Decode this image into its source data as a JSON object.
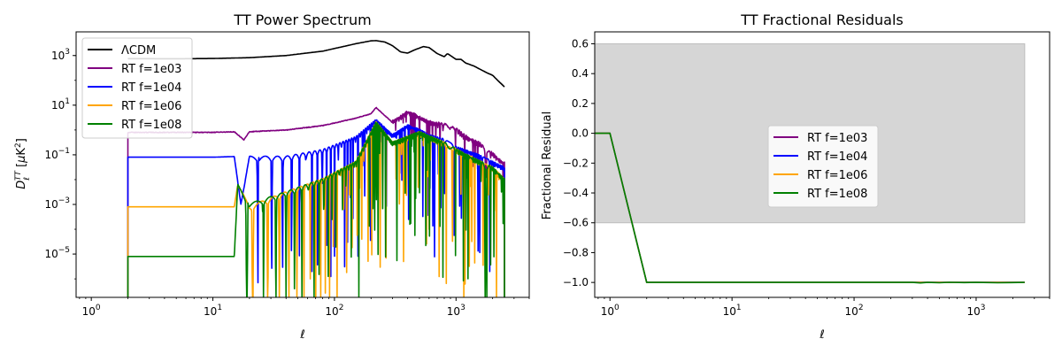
{
  "chart_data": [
    {
      "type": "line",
      "title": "TT Power Spectrum",
      "xlabel": "ℓ",
      "ylabel": "D_ℓ^TT [μK²]",
      "xscale": "log",
      "yscale": "log",
      "xlim": [
        0.75,
        4000
      ],
      "ylim": [
        1.8e-07,
        9000
      ],
      "xticks": [
        {
          "value": 1,
          "mantissa": "10",
          "exp": "0"
        },
        {
          "value": 10,
          "mantissa": "10",
          "exp": "1"
        },
        {
          "value": 100,
          "mantissa": "10",
          "exp": "2"
        },
        {
          "value": 1000,
          "mantissa": "10",
          "exp": "3"
        }
      ],
      "yticks": [
        {
          "value": 1e-05,
          "mantissa": "10",
          "exp": "−5"
        },
        {
          "value": 0.001,
          "mantissa": "10",
          "exp": "−3"
        },
        {
          "value": 0.1,
          "mantissa": "10",
          "exp": "−1"
        },
        {
          "value": 10,
          "mantissa": "10",
          "exp": "1"
        },
        {
          "value": 1000,
          "mantissa": "10",
          "exp": "3"
        }
      ],
      "legend": "upper-left",
      "series": [
        {
          "name": "ΛCDM",
          "color": "#000000",
          "x": [
            2,
            5,
            10,
            20,
            40,
            80,
            150,
            200,
            220,
            260,
            300,
            350,
            400,
            450,
            500,
            540,
            600,
            700,
            800,
            850,
            900,
            1000,
            1100,
            1200,
            1400,
            1600,
            1800,
            2000,
            2200,
            2500
          ],
          "y": [
            750,
            740,
            760,
            820,
            1000,
            1500,
            3000,
            3900,
            4000,
            3500,
            2500,
            1400,
            1250,
            1650,
            2000,
            2300,
            2100,
            1200,
            900,
            1200,
            1000,
            700,
            700,
            500,
            380,
            270,
            200,
            160,
            100,
            55
          ]
        },
        {
          "name": "RT f=1e03",
          "color": "#800080",
          "x": [
            2,
            5,
            10,
            15,
            18,
            20,
            40,
            80,
            150,
            200,
            220,
            300,
            400,
            500,
            600,
            800,
            1000,
            1200,
            1500,
            2000,
            2500
          ],
          "y": [
            0.8,
            0.8,
            0.8,
            0.85,
            0.4,
            0.85,
            1.0,
            1.5,
            3.0,
            4.5,
            8.0,
            2.0,
            5.0,
            3.0,
            2.0,
            1.5,
            1.0,
            0.5,
            0.3,
            0.1,
            0.04
          ]
        },
        {
          "name": "RT f=1e04",
          "color": "#0000ff",
          "x": [
            2,
            5,
            10,
            15,
            17,
            20,
            40,
            80,
            150,
            220,
            300,
            400,
            500,
            600,
            800,
            1000,
            1500,
            2000,
            2500
          ],
          "y": [
            0.08,
            0.08,
            0.08,
            0.085,
            0.001,
            0.08,
            0.08,
            0.15,
            0.5,
            2.5,
            0.6,
            1.5,
            1.0,
            0.6,
            0.4,
            0.2,
            0.1,
            0.05,
            0.03
          ]
        },
        {
          "name": "RT f=1e06",
          "color": "#ffa500",
          "x": [
            2,
            5,
            10,
            15,
            16,
            20,
            40,
            80,
            150,
            220,
            300,
            500,
            800,
            1200,
            2000,
            2500
          ],
          "y": [
            0.0008,
            0.0008,
            0.0008,
            0.0008,
            0.006,
            0.0008,
            0.003,
            0.01,
            0.05,
            2.0,
            0.3,
            0.8,
            0.3,
            0.1,
            0.03,
            0.01
          ]
        },
        {
          "name": "RT f=1e08",
          "color": "#008000",
          "x": [
            2,
            5,
            10,
            15,
            16,
            20,
            40,
            80,
            150,
            220,
            300,
            500,
            800,
            1200,
            2000,
            2500
          ],
          "y": [
            8e-06,
            8e-06,
            8e-06,
            8e-06,
            0.006,
            0.001,
            0.003,
            0.01,
            0.05,
            2.0,
            0.3,
            0.8,
            0.3,
            0.1,
            0.03,
            0.01
          ]
        }
      ]
    },
    {
      "type": "line",
      "title": "TT Fractional Residuals",
      "xlabel": "ℓ",
      "ylabel": "Fractional Residual",
      "xscale": "log",
      "xlim": [
        0.75,
        4000
      ],
      "ylim": [
        -1.1,
        0.68
      ],
      "xticks": [
        {
          "value": 1,
          "mantissa": "10",
          "exp": "0"
        },
        {
          "value": 10,
          "mantissa": "10",
          "exp": "1"
        },
        {
          "value": 100,
          "mantissa": "10",
          "exp": "2"
        },
        {
          "value": 1000,
          "mantissa": "10",
          "exp": "3"
        }
      ],
      "yticks": [
        {
          "value": 0.6,
          "label": "0.6"
        },
        {
          "value": 0.4,
          "label": "0.4"
        },
        {
          "value": 0.2,
          "label": "0.2"
        },
        {
          "value": 0.0,
          "label": "0.0"
        },
        {
          "value": -0.2,
          "label": "−0.2"
        },
        {
          "value": -0.4,
          "label": "−0.4"
        },
        {
          "value": -0.6,
          "label": "−0.6"
        },
        {
          "value": -0.8,
          "label": "−0.8"
        },
        {
          "value": -1.0,
          "label": "−1.0"
        }
      ],
      "band": {
        "x": [
          0.75,
          2500
        ],
        "y": [
          -0.6,
          0.6
        ],
        "color": "#d6d6d6"
      },
      "legend": "center",
      "series": [
        {
          "name": "RT f=1e03",
          "color": "#800080",
          "x": [
            0.75,
            1,
            2,
            2500
          ],
          "y": [
            0,
            0,
            -1,
            -1
          ]
        },
        {
          "name": "RT f=1e04",
          "color": "#0000ff",
          "x": [
            0.75,
            1,
            2,
            2500
          ],
          "y": [
            0,
            0,
            -1,
            -1
          ]
        },
        {
          "name": "RT f=1e06",
          "color": "#ffa500",
          "x": [
            0.75,
            1,
            2,
            2500
          ],
          "y": [
            0,
            0,
            -1,
            -1
          ]
        },
        {
          "name": "RT f=1e08",
          "color": "#008000",
          "x": [
            0.75,
            1,
            2,
            300,
            350,
            400,
            500,
            600,
            800,
            1000,
            1500,
            2500
          ],
          "y": [
            0,
            0,
            -1,
            -1,
            -1.003,
            -1.0,
            -1.002,
            -0.999,
            -1.001,
            -1.0,
            -1.002,
            -1.0
          ]
        }
      ]
    }
  ]
}
